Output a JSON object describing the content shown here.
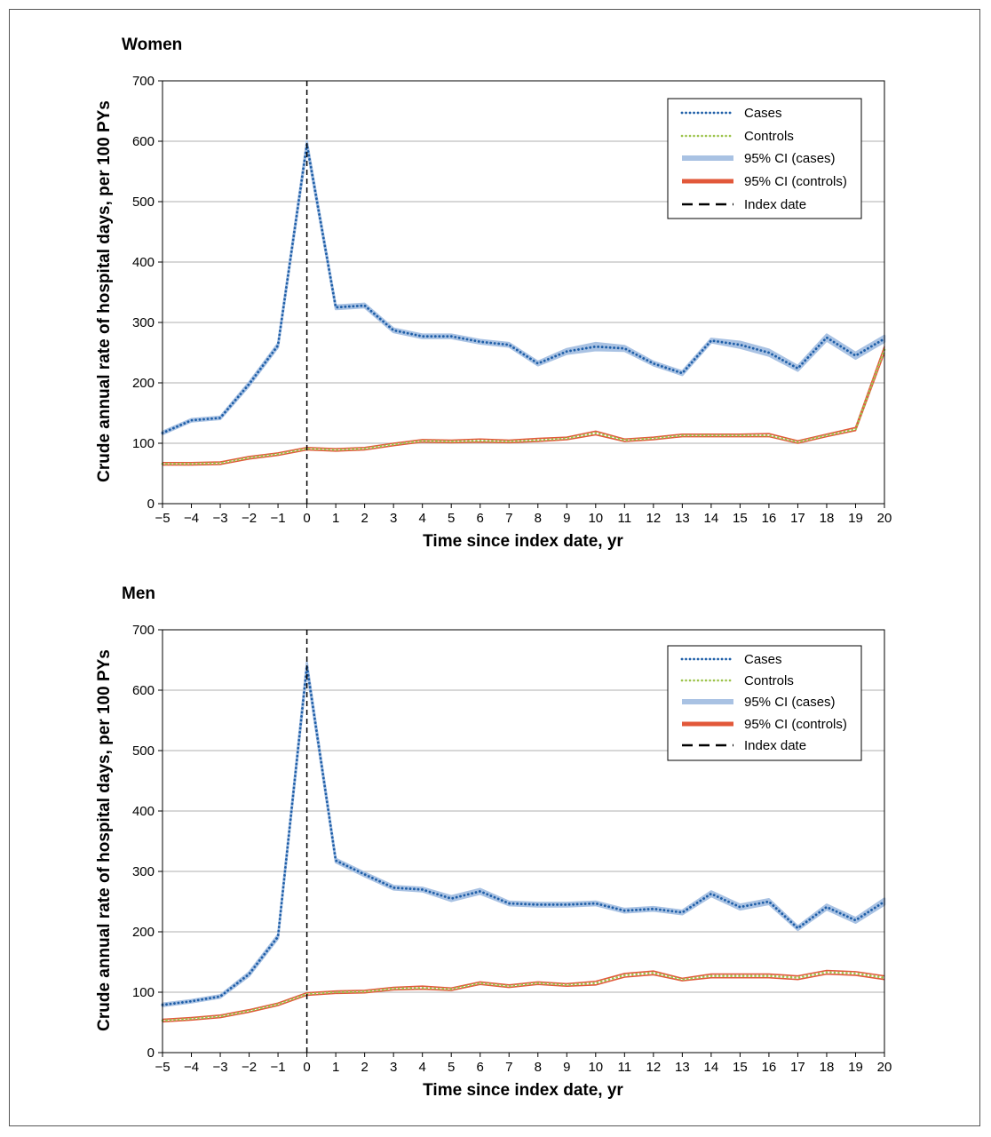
{
  "colors": {
    "cases": "#1f5fa8",
    "cases_ci": "#a9c2e3",
    "controls": "#9cc34a",
    "controls_ci": "#e2583a",
    "index": "#000000",
    "grid": "#bfbfbf"
  },
  "chart_data": [
    {
      "type": "line",
      "title": "Women",
      "xlabel": "Time since index date, yr",
      "ylabel": "Crude annual rate of hospital days, per 100 PYs",
      "xlim": [
        -5,
        20
      ],
      "ylim": [
        0,
        700
      ],
      "xticks": [
        -5,
        -4,
        -3,
        -2,
        -1,
        0,
        1,
        2,
        3,
        4,
        5,
        6,
        7,
        8,
        9,
        10,
        11,
        12,
        13,
        14,
        15,
        16,
        17,
        18,
        19,
        20
      ],
      "xtick_labels": [
        "−5",
        "−4",
        "−3",
        "−2",
        "−1",
        "0",
        "1",
        "2",
        "3",
        "4",
        "5",
        "6",
        "7",
        "8",
        "9",
        "10",
        "11",
        "12",
        "13",
        "14",
        "15",
        "16",
        "17",
        "18",
        "19",
        "20"
      ],
      "yticks": [
        0,
        100,
        200,
        300,
        400,
        500,
        600,
        700
      ],
      "grid": "horizontal",
      "legend_position": "top-right",
      "index_date": 0,
      "legend": [
        "Cases",
        "Controls",
        "95% CI (cases)",
        "95% CI (controls)",
        "Index date"
      ],
      "x": [
        -5,
        -4,
        -3,
        -2,
        -1,
        0,
        1,
        2,
        3,
        4,
        5,
        6,
        7,
        8,
        9,
        10,
        11,
        12,
        13,
        14,
        15,
        16,
        17,
        18,
        19,
        20
      ],
      "series": [
        {
          "name": "Cases",
          "values": [
            117,
            138,
            142,
            198,
            262,
            595,
            325,
            328,
            287,
            277,
            277,
            268,
            263,
            232,
            252,
            260,
            257,
            232,
            216,
            270,
            263,
            250,
            224,
            275,
            245,
            273
          ]
        },
        {
          "name": "95% CI (cases)",
          "lower": [
            115,
            136,
            140,
            195,
            259,
            590,
            322,
            325,
            284,
            274,
            274,
            265,
            260,
            229,
            248,
            254,
            253,
            229,
            213,
            267,
            258,
            245,
            220,
            270,
            240,
            268
          ],
          "upper": [
            119,
            140,
            144,
            201,
            265,
            600,
            328,
            331,
            290,
            280,
            280,
            271,
            266,
            235,
            256,
            266,
            261,
            235,
            219,
            273,
            268,
            255,
            228,
            280,
            250,
            278
          ]
        },
        {
          "name": "Controls",
          "values": [
            66,
            66,
            67,
            76,
            82,
            91,
            89,
            91,
            98,
            104,
            103,
            104,
            103,
            105,
            108,
            117,
            105,
            108,
            113,
            113,
            113,
            113,
            102,
            113,
            123,
            255
          ]
        },
        {
          "name": "95% CI (controls)",
          "lower": [
            64,
            64,
            65,
            74,
            80,
            89,
            87,
            89,
            96,
            102,
            101,
            102,
            101,
            103,
            106,
            114,
            103,
            106,
            111,
            111,
            111,
            111,
            100,
            111,
            121,
            250
          ],
          "upper": [
            68,
            68,
            69,
            78,
            84,
            93,
            91,
            93,
            100,
            106,
            105,
            107,
            105,
            108,
            110,
            120,
            107,
            110,
            115,
            115,
            115,
            116,
            104,
            115,
            126,
            260
          ]
        }
      ]
    },
    {
      "type": "line",
      "title": "Men",
      "xlabel": "Time since index date, yr",
      "ylabel": "Crude annual rate of hospital days, per 100 PYs",
      "xlim": [
        -5,
        20
      ],
      "ylim": [
        0,
        700
      ],
      "xticks": [
        -5,
        -4,
        -3,
        -2,
        -1,
        0,
        1,
        2,
        3,
        4,
        5,
        6,
        7,
        8,
        9,
        10,
        11,
        12,
        13,
        14,
        15,
        16,
        17,
        18,
        19,
        20
      ],
      "xtick_labels": [
        "−5",
        "−4",
        "−3",
        "−2",
        "−1",
        "0",
        "1",
        "2",
        "3",
        "4",
        "5",
        "6",
        "7",
        "8",
        "9",
        "10",
        "11",
        "12",
        "13",
        "14",
        "15",
        "16",
        "17",
        "18",
        "19",
        "20"
      ],
      "yticks": [
        0,
        100,
        200,
        300,
        400,
        500,
        600,
        700
      ],
      "grid": "horizontal",
      "legend_position": "top-right",
      "index_date": 0,
      "legend": [
        "Cases",
        "Controls",
        "95% CI (cases)",
        "95% CI (controls)",
        "Index date"
      ],
      "x": [
        -5,
        -4,
        -3,
        -2,
        -1,
        0,
        1,
        2,
        3,
        4,
        5,
        6,
        7,
        8,
        9,
        10,
        11,
        12,
        13,
        14,
        15,
        16,
        17,
        18,
        19,
        20
      ],
      "series": [
        {
          "name": "Cases",
          "values": [
            79,
            85,
            93,
            130,
            192,
            640,
            318,
            295,
            273,
            270,
            255,
            267,
            247,
            245,
            245,
            247,
            235,
            238,
            232,
            263,
            241,
            250,
            206,
            241,
            219,
            250
          ]
        },
        {
          "name": "95% CI (cases)",
          "lower": [
            77,
            83,
            91,
            127,
            189,
            634,
            315,
            292,
            270,
            267,
            251,
            263,
            244,
            242,
            242,
            244,
            232,
            235,
            229,
            259,
            237,
            246,
            203,
            237,
            215,
            245
          ],
          "upper": [
            81,
            87,
            95,
            133,
            195,
            646,
            321,
            298,
            276,
            273,
            259,
            271,
            250,
            248,
            248,
            250,
            238,
            241,
            235,
            267,
            245,
            254,
            209,
            245,
            223,
            255
          ]
        },
        {
          "name": "Controls",
          "values": [
            53,
            56,
            60,
            69,
            80,
            97,
            100,
            101,
            106,
            107,
            105,
            115,
            110,
            115,
            112,
            115,
            128,
            132,
            121,
            127,
            127,
            127,
            124,
            133,
            131,
            124
          ]
        },
        {
          "name": "95% CI (controls)",
          "lower": [
            51,
            54,
            58,
            67,
            78,
            95,
            98,
            99,
            104,
            105,
            103,
            113,
            108,
            113,
            110,
            112,
            125,
            129,
            119,
            124,
            124,
            124,
            121,
            130,
            128,
            121
          ],
          "upper": [
            55,
            58,
            62,
            71,
            82,
            99,
            102,
            103,
            108,
            110,
            107,
            117,
            112,
            117,
            114,
            118,
            131,
            135,
            123,
            130,
            130,
            130,
            127,
            136,
            134,
            127
          ]
        }
      ]
    }
  ]
}
